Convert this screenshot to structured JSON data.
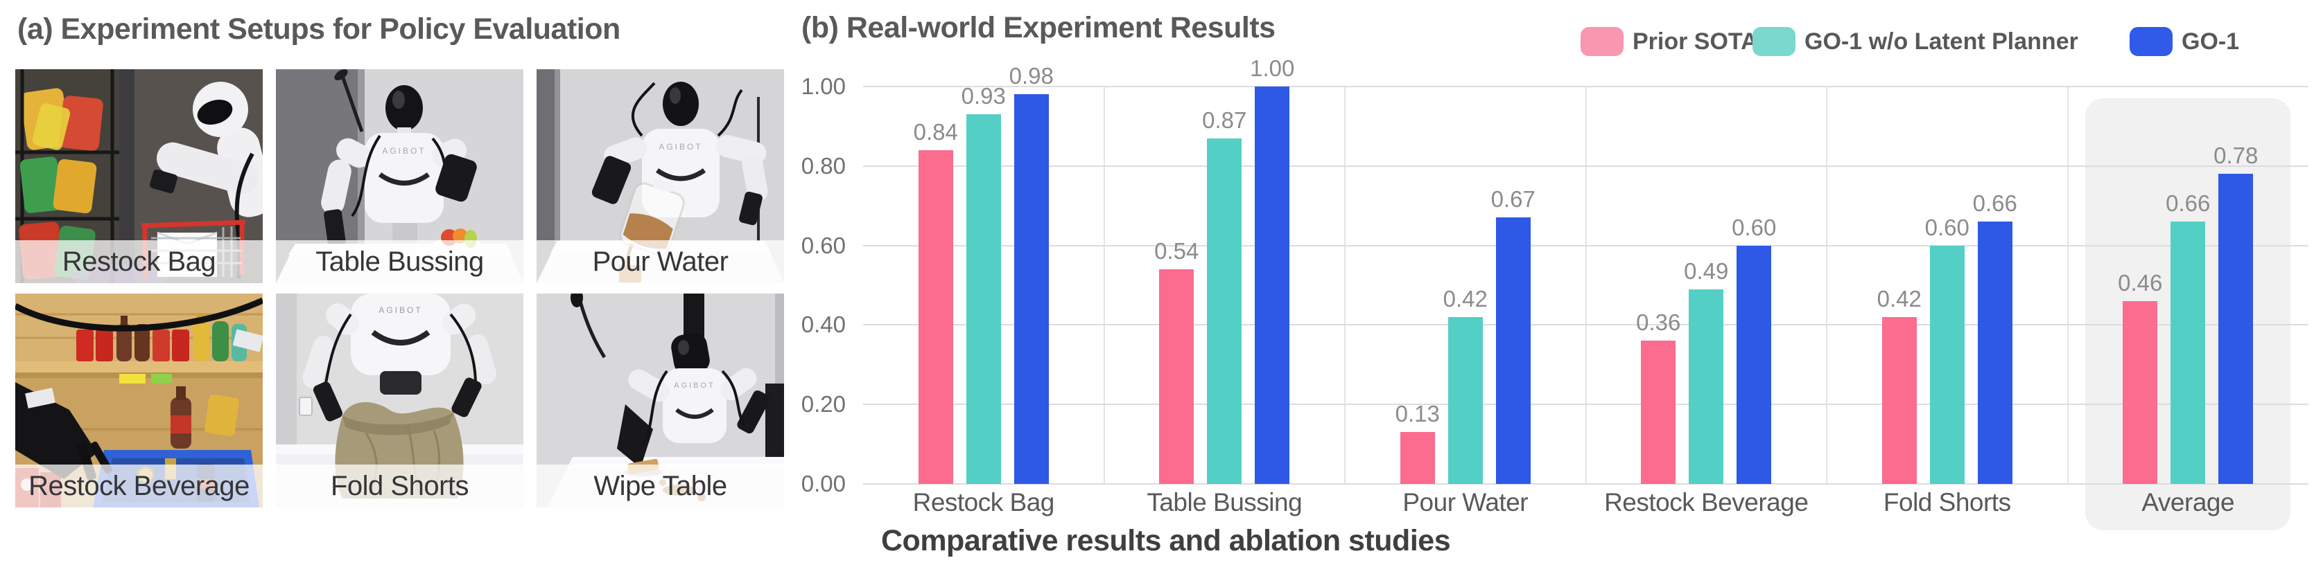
{
  "panel_a": {
    "title": "(a) Experiment Setups for Policy Evaluation",
    "tiles": [
      {
        "label": "Restock Bag"
      },
      {
        "label": "Table Bussing"
      },
      {
        "label": "Pour Water"
      },
      {
        "label": "Restock Beverage"
      },
      {
        "label": "Fold Shorts"
      },
      {
        "label": "Wipe Table"
      }
    ]
  },
  "panel_b": {
    "title": "(b) Real-world Experiment Results",
    "caption": "Comparative results and ablation studies"
  },
  "chart_data": {
    "type": "bar",
    "title": "(b) Real-world Experiment Results",
    "categories": [
      "Restock Bag",
      "Table Bussing",
      "Pour Water",
      "Restock Beverage",
      "Fold Shorts",
      "Average"
    ],
    "series": [
      {
        "name": "Prior SOTA",
        "color": "#FB6C8E",
        "swatch": "#F897AF",
        "values": [
          0.84,
          0.54,
          0.13,
          0.36,
          0.42,
          0.46
        ]
      },
      {
        "name": "GO-1 w/o Latent Planner",
        "color": "#54CFC5",
        "swatch": "#7BD8CE",
        "values": [
          0.93,
          0.87,
          0.42,
          0.49,
          0.6,
          0.66
        ]
      },
      {
        "name": "GO-1",
        "color": "#2E59E6",
        "swatch": "#2F5BE8",
        "values": [
          0.98,
          1.0,
          0.67,
          0.6,
          0.66,
          0.78
        ]
      }
    ],
    "ylim": [
      0.0,
      1.0
    ],
    "yticks": [
      0.0,
      0.2,
      0.4,
      0.6,
      0.8,
      1.0
    ],
    "grid": true,
    "legend_position": "top-right",
    "highlight_category": "Average",
    "value_labels": true
  }
}
